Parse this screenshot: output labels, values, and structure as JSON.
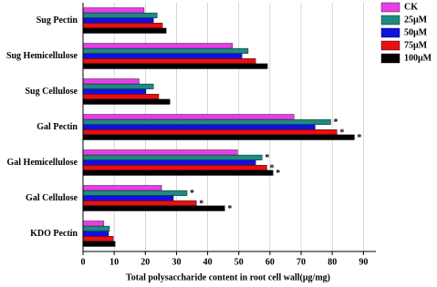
{
  "chart_data": {
    "type": "hbar",
    "x_label": "Total polysaccharide content in root cell wall(μg/mg)",
    "categories": [
      "Sug Pectin",
      "Sug Hemicellulose",
      "Sug Cellulose",
      "Gal Pectin",
      "Gal Hemicellulose",
      "Gal Cellulose",
      "KDO Pectin"
    ],
    "series": [
      {
        "name": "CK",
        "color": "#e83ee8",
        "values": [
          19.6,
          48,
          18,
          67.7,
          49.6,
          25.2,
          6.7
        ],
        "annotations": [
          null,
          null,
          null,
          null,
          null,
          null,
          null
        ]
      },
      {
        "name": "25μM",
        "color": "#1f8a84",
        "values": [
          23.8,
          53,
          22.6,
          79.5,
          57.5,
          33.4,
          8.5
        ],
        "annotations": [
          null,
          null,
          null,
          "*",
          "*",
          "*",
          null
        ]
      },
      {
        "name": "50μM",
        "color": "#1010e0",
        "values": [
          22.6,
          51,
          20.2,
          74.5,
          55.4,
          29,
          8.2
        ],
        "annotations": [
          null,
          null,
          null,
          null,
          null,
          null,
          null
        ]
      },
      {
        "name": "75μM",
        "color": "#e81010",
        "values": [
          25.5,
          55.4,
          24.3,
          81.5,
          59,
          36.4,
          9.7
        ],
        "annotations": [
          null,
          null,
          null,
          "*",
          "*",
          "*",
          null
        ]
      },
      {
        "name": "100μM",
        "color": "#000000",
        "values": [
          26.7,
          59.2,
          27.9,
          87.1,
          61,
          45.5,
          10.3
        ],
        "annotations": [
          null,
          null,
          null,
          "*",
          "*",
          "*",
          null
        ]
      }
    ],
    "xlim": [
      0,
      94
    ],
    "xticks": [
      0,
      10,
      20,
      30,
      40,
      50,
      60,
      70,
      80,
      90
    ],
    "grid": true,
    "legend": "top-right"
  }
}
